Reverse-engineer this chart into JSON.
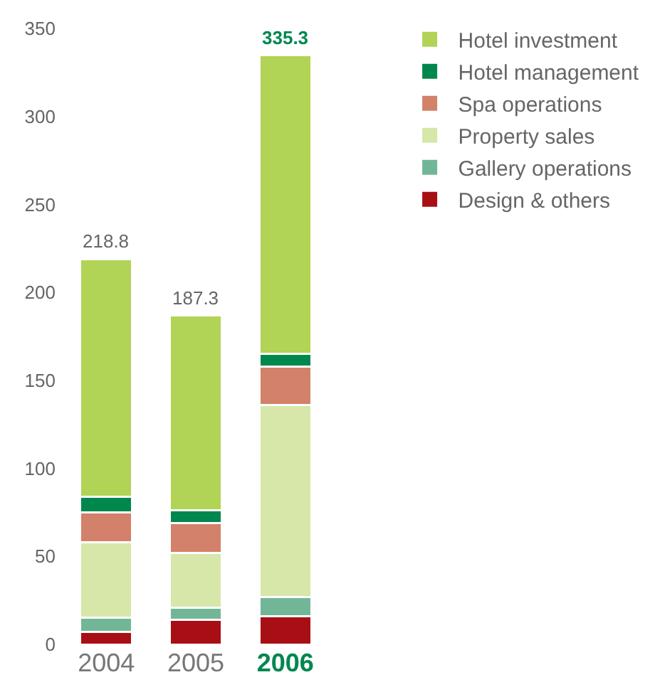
{
  "chart_data": {
    "type": "bar",
    "stacked": true,
    "categories": [
      "2004",
      "2005",
      "2006"
    ],
    "series": [
      {
        "name": "Design & others",
        "color": "#a80f14",
        "values": [
          7,
          14,
          16
        ]
      },
      {
        "name": "Gallery operations",
        "color": "#72b698",
        "values": [
          8,
          7,
          11
        ]
      },
      {
        "name": "Property sales",
        "color": "#d6e7a9",
        "values": [
          43,
          31,
          109
        ]
      },
      {
        "name": "Spa operations",
        "color": "#d3816a",
        "values": [
          17,
          17,
          22
        ]
      },
      {
        "name": "Hotel management",
        "color": "#00874e",
        "values": [
          9,
          7,
          7
        ]
      },
      {
        "name": "Hotel investment",
        "color": "#b1d356",
        "values": [
          135,
          111,
          170
        ]
      }
    ],
    "totals": [
      "218.8",
      "187.3",
      "335.3"
    ],
    "ylim": [
      0,
      350
    ],
    "yticks": [
      0,
      50,
      100,
      150,
      200,
      250,
      300,
      350
    ],
    "grid": false,
    "legend": "top right"
  }
}
